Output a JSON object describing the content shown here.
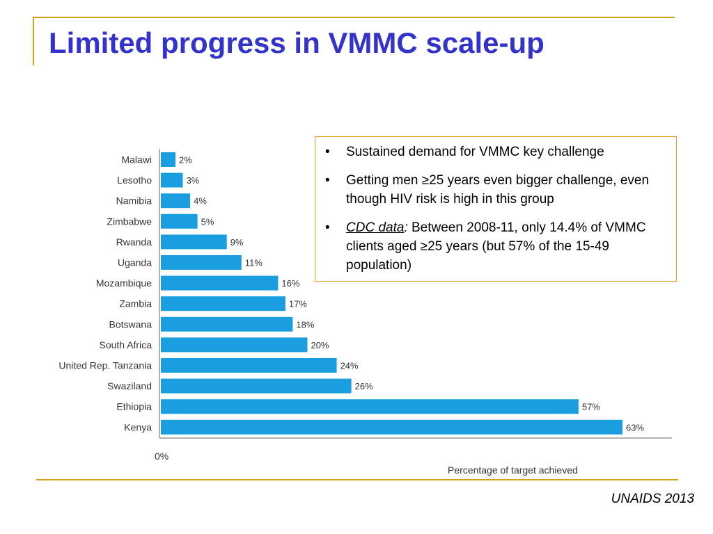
{
  "slide": {
    "title": "Limited progress in VMMC scale-up",
    "source": "UNAIDS 2013"
  },
  "callout": {
    "bullets": [
      {
        "lead": "",
        "text": "Sustained demand for VMMC key challenge"
      },
      {
        "lead": "",
        "text": "Getting men ≥25 years even bigger challenge, even though HIV risk is high in this group"
      },
      {
        "lead": "CDC data",
        "text": " Between 2008-11, only 14.4% of VMMC clients aged ≥25 years (but 57% of the 15-49 population)"
      }
    ]
  },
  "chart_data": {
    "type": "bar",
    "orientation": "horizontal",
    "categories": [
      "Malawi",
      "Lesotho",
      "Namibia",
      "Zimbabwe",
      "Rwanda",
      "Uganda",
      "Mozambique",
      "Zambia",
      "Botswana",
      "South Africa",
      "United Rep. Tanzania",
      "Swaziland",
      "Ethiopia",
      "Kenya"
    ],
    "values": [
      2,
      3,
      4,
      5,
      9,
      11,
      16,
      17,
      18,
      20,
      24,
      26,
      57,
      63
    ],
    "value_labels": [
      "2%",
      "3%",
      "4%",
      "5%",
      "9%",
      "11%",
      "16%",
      "17%",
      "18%",
      "20%",
      "24%",
      "26%",
      "57%",
      "63%"
    ],
    "xlabel": "Percentage of target achieved",
    "x_tick_label": "0%",
    "xlim": [
      0,
      63
    ],
    "bar_color": "#1a9ee0",
    "grid": false,
    "legend": "none"
  },
  "colors": {
    "title": "#3333cc",
    "frame": "#d4a017"
  }
}
